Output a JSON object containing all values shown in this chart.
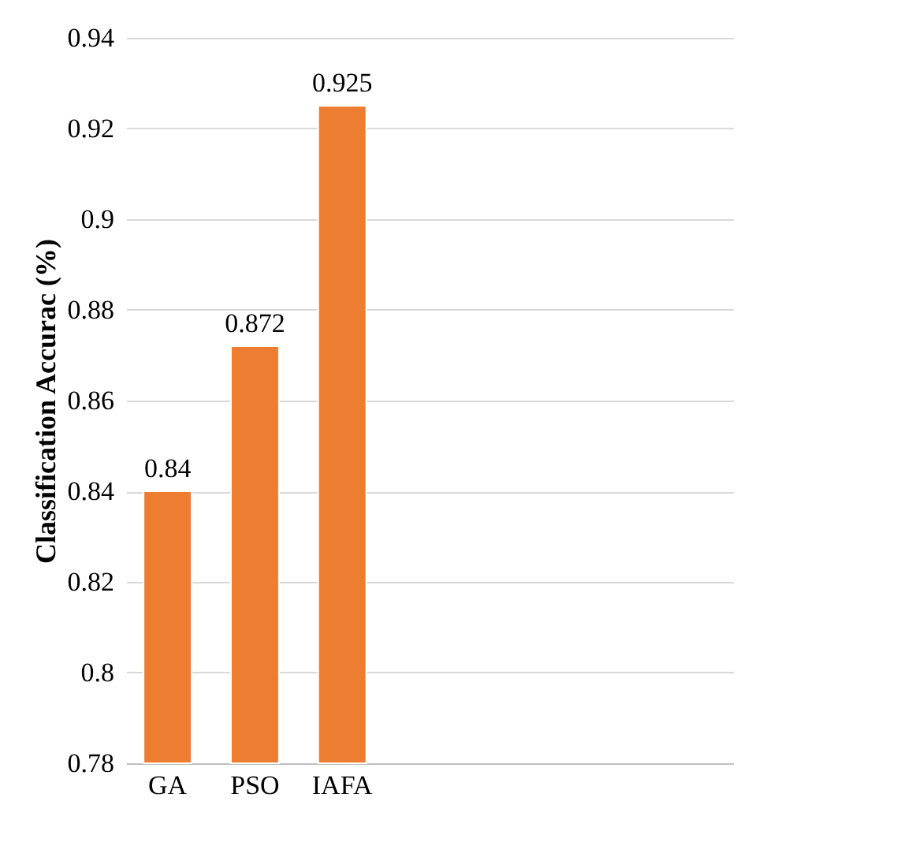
{
  "chart_data": {
    "type": "bar",
    "ylabel": "Classification Accurac (%)",
    "categories": [
      "GA",
      "PSO",
      "IAFA",
      null,
      null,
      null,
      null
    ],
    "values": [
      0.84,
      0.872,
      0.925,
      null,
      null,
      null,
      null
    ],
    "color": "#ed7d31",
    "ylim": [
      0.78,
      0.94
    ],
    "yticks": [
      0.78,
      0.8,
      0.82,
      0.84,
      0.86,
      0.88,
      0.9,
      0.92,
      0.94
    ],
    "grid": "y",
    "data_labels": true
  }
}
